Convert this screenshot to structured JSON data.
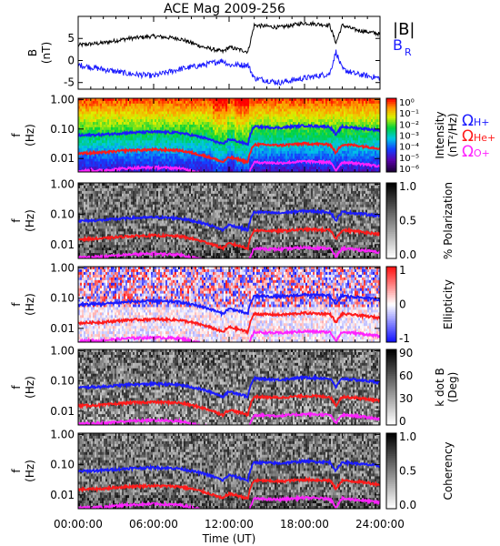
{
  "title": "ACE Mag 2009-256",
  "colors": {
    "B": "#000000",
    "BR": "#1a1aff",
    "H": "#1a1aff",
    "He": "#ff1a1a",
    "O": "#ff22ff"
  },
  "chart_data": [
    {
      "type": "line",
      "panel": "field",
      "ylabel": "B (nT)",
      "ylim": [
        -6.5,
        10
      ],
      "yticks": [
        "5",
        "0",
        "-5"
      ],
      "legend": [
        {
          "label": "|B|",
          "color": "#000000"
        },
        {
          "label": "B",
          "sub": "R",
          "color": "#1a1aff"
        }
      ],
      "series": [
        {
          "name": "|B|",
          "x": [
            0,
            2,
            4,
            6,
            8,
            10,
            11.5,
            12,
            13.5,
            14,
            16,
            18,
            20,
            20.5,
            21,
            22,
            24
          ],
          "values": [
            3.5,
            4,
            5,
            5.5,
            5,
            3,
            2,
            3,
            2,
            8,
            7.5,
            8.5,
            8,
            4,
            8,
            7,
            6
          ]
        },
        {
          "name": "B_R",
          "x": [
            0,
            2,
            4,
            6,
            8,
            10,
            11.5,
            12,
            13.5,
            14,
            16,
            18,
            20,
            20.5,
            21,
            22,
            24
          ],
          "values": [
            -1,
            -2,
            -3,
            -3.5,
            -2,
            -1,
            0,
            -1,
            -1,
            -4,
            -5,
            -4,
            -3,
            2,
            -2,
            -3,
            -4
          ]
        }
      ]
    },
    {
      "type": "heatmap",
      "panel": "intensity",
      "ylabel": "f (Hz)",
      "yticks": [
        "1.00",
        "0.10",
        "0.01"
      ],
      "colorbar": {
        "label": "Intensity (nT²/Hz)",
        "ticks": [
          "10⁰",
          "10⁻¹",
          "10⁻²",
          "10⁻³",
          "10⁻⁴",
          "10⁻⁵",
          "10⁻⁶"
        ]
      },
      "legend": [
        "ΩH+",
        "ΩHe+",
        "ΩO+"
      ]
    },
    {
      "type": "heatmap",
      "panel": "polarization",
      "ylabel": "f (Hz)",
      "yticks": [
        "1.00",
        "0.10",
        "0.01"
      ],
      "colorbar": {
        "label": "% Polarization",
        "ticks": [
          "1.0",
          "0.5",
          "0.0"
        ]
      }
    },
    {
      "type": "heatmap",
      "panel": "ellipticity",
      "ylabel": "f (Hz)",
      "yticks": [
        "1.00",
        "0.10",
        "0.01"
      ],
      "colorbar": {
        "label": "Ellipticity",
        "ticks": [
          "1",
          "0",
          "-1"
        ]
      }
    },
    {
      "type": "heatmap",
      "panel": "kdotb",
      "ylabel": "f (Hz)",
      "yticks": [
        "1.00",
        "0.10",
        "0.01"
      ],
      "colorbar": {
        "label": "k dot B (Deg)",
        "ticks": [
          "90",
          "60",
          "30",
          "0"
        ]
      }
    },
    {
      "type": "heatmap",
      "panel": "coherency",
      "ylabel": "f (Hz)",
      "yticks": [
        "1.00",
        "0.10",
        "0.01"
      ],
      "colorbar": {
        "label": "Coherency",
        "ticks": [
          "1.0",
          "0.5",
          "0.0"
        ]
      }
    },
    {
      "type": "line",
      "panel": "gyrofrequencies",
      "xlabel": "Time (UT)",
      "xticks": [
        "00:00:00",
        "06:00:00",
        "12:00:00",
        "18:00:00",
        "24:00:00"
      ],
      "series": [
        {
          "name": "ΩH+",
          "x": [
            0,
            2,
            4,
            6,
            8,
            10,
            11.5,
            12,
            13.5,
            14,
            16,
            18,
            20,
            20.5,
            21,
            22,
            24
          ],
          "values": [
            0.06,
            0.065,
            0.075,
            0.08,
            0.075,
            0.05,
            0.03,
            0.045,
            0.03,
            0.12,
            0.11,
            0.13,
            0.12,
            0.06,
            0.12,
            0.11,
            0.09
          ]
        },
        {
          "name": "ΩHe+",
          "x": [
            0,
            2,
            4,
            6,
            8,
            10,
            11.5,
            12,
            13.5,
            14,
            16,
            18,
            20,
            20.5,
            21,
            22,
            24
          ],
          "values": [
            0.015,
            0.016,
            0.019,
            0.02,
            0.019,
            0.0125,
            0.0075,
            0.011,
            0.0075,
            0.03,
            0.028,
            0.032,
            0.03,
            0.015,
            0.03,
            0.028,
            0.022
          ]
        },
        {
          "name": "ΩO+",
          "x": [
            0,
            2,
            4,
            6,
            8,
            10,
            11.5,
            12,
            13.5,
            14,
            16,
            18,
            20,
            20.5,
            21,
            22,
            24
          ],
          "values": [
            0.0038,
            0.004,
            0.0047,
            0.005,
            0.0047,
            0.0031,
            0.0019,
            0.0028,
            0.0019,
            0.0075,
            0.007,
            0.008,
            0.0075,
            0.0038,
            0.0075,
            0.007,
            0.0055
          ]
        }
      ]
    }
  ]
}
